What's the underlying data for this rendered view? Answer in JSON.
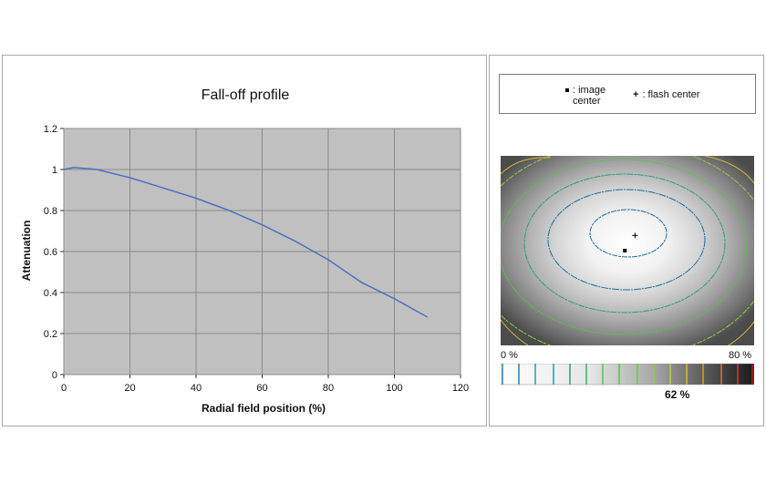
{
  "chart_data": [
    {
      "type": "line",
      "title": "Fall-off profile",
      "xlabel": "Radial field position (%)",
      "ylabel": "Attenuation",
      "xlim": [
        0,
        120
      ],
      "ylim": [
        0,
        1.2
      ],
      "xticks": [
        "0",
        "20",
        "40",
        "60",
        "80",
        "100",
        "120"
      ],
      "yticks": [
        "0",
        "0.2",
        "0.4",
        "0.6",
        "0.8",
        "1",
        "1.2"
      ],
      "grid": true,
      "series": [
        {
          "color": "#4a72c2",
          "x": [
            0,
            3,
            10,
            20,
            30,
            40,
            50,
            60,
            70,
            80,
            90,
            100,
            110
          ],
          "y": [
            1.0,
            1.01,
            1.0,
            0.96,
            0.91,
            0.86,
            0.8,
            0.73,
            0.65,
            0.56,
            0.45,
            0.37,
            0.28
          ]
        }
      ]
    },
    {
      "type": "heatmap",
      "legend": {
        "image_center": ": image center",
        "flash_center": ": flash center"
      },
      "scale_min": "0 %",
      "scale_max": "80 %",
      "marker_value": "62 %",
      "image_center_position": [
        0.49,
        0.5
      ],
      "flash_center_position": [
        0.53,
        0.42
      ]
    }
  ]
}
